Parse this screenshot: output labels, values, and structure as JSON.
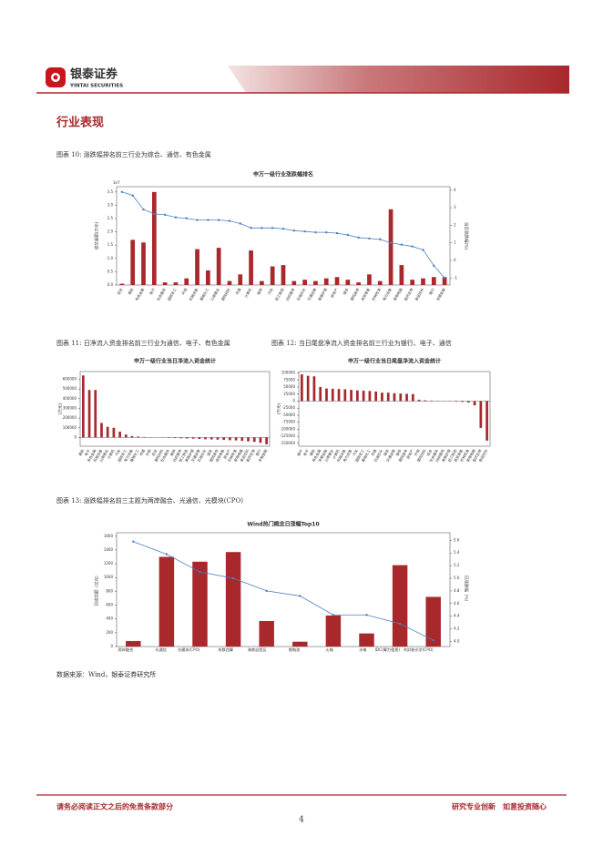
{
  "header": {
    "brand": "银泰证券",
    "brand_en": "YINTAI SECURITIES"
  },
  "section_title": "行业表现",
  "figures": [
    {
      "caption": "图表 10: 涨跌幅排名前三行业为综合、通信、有色金属"
    },
    {
      "caption": "图表 11: 日净流入资金排名前三行业为通信、电子、有色金属"
    },
    {
      "caption": "图表 12: 当日尾盘净流入资金排名前三行业为银行、电子、通信"
    },
    {
      "caption": "图表 13: 涨跌幅排名前三主题为两岸融合、光通信、光模块(CPO)"
    }
  ],
  "chart_data": [
    {
      "type": "bar_line",
      "title": "申万一级行业涨跌幅排名",
      "categories": [
        "综合",
        "通信",
        "有色金属",
        "电子",
        "社会服务",
        "国防军工",
        "环保",
        "机械设备",
        "基础化工",
        "公用事业",
        "建筑材料",
        "传媒",
        "计算机",
        "钢铁",
        "汽车",
        "轻工制造",
        "纺织服饰",
        "石油石化",
        "交通运输",
        "美容护理",
        "房地产",
        "煤炭",
        "建筑装饰",
        "商贸零售",
        "农林牧渔",
        "电力设备",
        "家用电器",
        "医药生物",
        "食品饮料",
        "银行",
        "非银金融"
      ],
      "ylabel": "成交金额(万元)",
      "y2label": "当日涨跌幅(%)",
      "yoffset_label": "1e7",
      "ylim": [
        0,
        3.7
      ],
      "yticks": [
        {
          "value": 0,
          "label": "0.0"
        },
        0.5,
        {
          "value": 1,
          "label": "1.0"
        },
        1.5,
        {
          "value": 2,
          "label": "2.0"
        },
        2.5,
        {
          "value": 3,
          "label": "3.0"
        },
        3.5
      ],
      "y2lim": [
        -1.4,
        4.2
      ],
      "y2ticks": [
        -1,
        0,
        1,
        2,
        3,
        4
      ],
      "series": [
        {
          "name": "成交金额",
          "color": "#a8282c",
          "axis": "y",
          "values": [
            0.05,
            1.7,
            1.6,
            3.5,
            0.1,
            0.1,
            0.25,
            1.35,
            0.55,
            1.4,
            0.15,
            0.4,
            1.3,
            0.15,
            0.7,
            0.75,
            0.15,
            0.2,
            0.15,
            0.25,
            0.3,
            0.2,
            0.1,
            0.4,
            0.15,
            2.85,
            0.75,
            0.2,
            0.25,
            0.3,
            0.3
          ]
        },
        {
          "name": "涨跌幅",
          "color": "#4a7fc1",
          "axis": "y2",
          "values": [
            3.9,
            3.7,
            2.9,
            2.65,
            2.6,
            2.45,
            2.4,
            2.3,
            2.3,
            2.3,
            2.25,
            2.1,
            1.85,
            1.85,
            1.85,
            1.8,
            1.7,
            1.65,
            1.6,
            1.6,
            1.55,
            1.45,
            1.3,
            1.25,
            1.2,
            1.0,
            0.9,
            0.8,
            0.6,
            -0.3,
            -1.0
          ]
        }
      ]
    },
    {
      "type": "bar",
      "title": "申万一级行业当日净流入资金统计",
      "ylabel": "(万元)",
      "categories": [
        "通信",
        "电子",
        "有色金属",
        "机械设备",
        "公用事业",
        "计算机",
        "汽车",
        "国防军工",
        "电力设备",
        "基础化工",
        "传媒",
        "环保",
        "综合",
        "建筑材料",
        "社会服务",
        "钢铁",
        "纺织服饰",
        "轻工制造",
        "美容护理",
        "交通运输",
        "石油石化",
        "煤炭",
        "建筑装饰",
        "商贸零售",
        "房地产",
        "农林牧渔",
        "家用电器",
        "食品饮料",
        "医药生物",
        "银行",
        "非银金融"
      ],
      "ylim": [
        -90000,
        680000
      ],
      "yticks": [
        0,
        100000,
        200000,
        300000,
        400000,
        500000,
        600000
      ],
      "series": [
        {
          "name": "当日净流入",
          "color": "#a8282c",
          "axis": "y",
          "values": [
            640000,
            490000,
            490000,
            150000,
            110000,
            100000,
            60000,
            30000,
            15000,
            10000,
            5000,
            2000,
            1000,
            -2000,
            -4000,
            -6000,
            -8000,
            -10000,
            -12000,
            -15000,
            -18000,
            -20000,
            -22000,
            -25000,
            -28000,
            -30000,
            -35000,
            -40000,
            -45000,
            -55000,
            -70000
          ]
        }
      ]
    },
    {
      "type": "bar",
      "title": "申万一级行业当日尾盘净流入资金统计",
      "ylabel": "(万元)",
      "categories": [
        "银行",
        "电子",
        "通信",
        "有色金属",
        "非银金融",
        "公用事业",
        "计算机",
        "机械设备",
        "电力设备",
        "汽车",
        "国防军工",
        "基础化工",
        "传媒",
        "石油石化",
        "煤炭",
        "交通运输",
        "钢铁",
        "建筑装饰",
        "房地产",
        "环保",
        "建筑材料",
        "综合",
        "社会服务",
        "纺织服饰",
        "美容护理",
        "轻工制造",
        "商贸零售",
        "农林牧渔",
        "家用电器",
        "医药生物",
        "食品饮料"
      ],
      "ylim": [
        -160000,
        105000
      ],
      "yticks": [
        -150000,
        -125000,
        -100000,
        -75000,
        -50000,
        -25000,
        0,
        25000,
        50000,
        75000,
        100000
      ],
      "series": [
        {
          "name": "尾盘净流入",
          "color": "#a8282c",
          "axis": "y",
          "values": [
            95000,
            90000,
            88000,
            50000,
            45000,
            44000,
            43000,
            42000,
            40000,
            38000,
            37000,
            36000,
            34000,
            30000,
            30000,
            28000,
            27000,
            26000,
            25000,
            5000,
            3000,
            2000,
            1000,
            500,
            -1000,
            -2000,
            -3000,
            -5000,
            -15000,
            -95000,
            -140000
          ]
        }
      ]
    },
    {
      "type": "bar_line",
      "title": "Wind热门概念日涨幅Top10",
      "categories": [
        "两岸融合",
        "光通信",
        "光模块(CPO)",
        "东数西算",
        "海南自贸区",
        "锂电池",
        "火电",
        "水电",
        "IDC(算力租赁)",
        "共封装光学(CPO)"
      ],
      "ylabel": "日成交额（亿元）",
      "y2label": "日涨跌幅（%）",
      "ylim": [
        0,
        1650
      ],
      "yticks": [
        0,
        200,
        400,
        600,
        800,
        1000,
        1200,
        1400,
        1600
      ],
      "y2lim": [
        3.92,
        5.72
      ],
      "y2ticks": [
        {
          "value": 4,
          "label": "4.0"
        },
        4.2,
        4.4,
        4.6,
        4.8,
        {
          "value": 5,
          "label": "5.0"
        },
        5.2,
        5.4,
        5.6
      ],
      "series": [
        {
          "name": "日成交额",
          "color": "#a8282c",
          "axis": "y",
          "values": [
            80,
            1300,
            1230,
            1370,
            370,
            70,
            450,
            190,
            1180,
            720
          ]
        },
        {
          "name": "日涨跌幅",
          "color": "#4a7fc1",
          "axis": "y2",
          "values": [
            5.58,
            5.38,
            5.1,
            5.0,
            4.8,
            4.72,
            4.42,
            4.42,
            4.28,
            4.02
          ]
        }
      ]
    }
  ],
  "source": "数据来源：Wind，银泰证券研究所",
  "footer": {
    "disclaimer": "请务必阅读正文之后的免责条款部分",
    "slogan": "研究专业创新　如意投资随心",
    "page": "4"
  }
}
